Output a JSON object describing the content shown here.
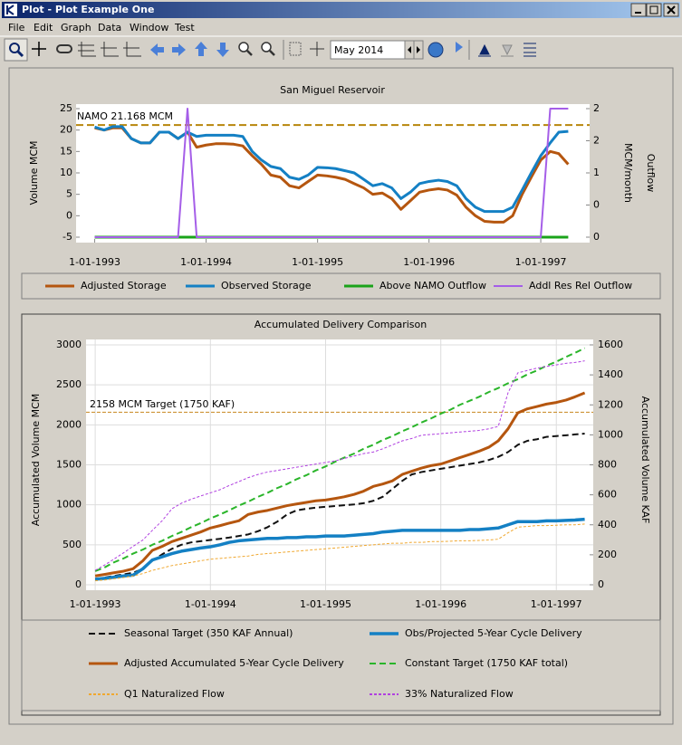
{
  "window": {
    "title": "Plot - Plot Example One",
    "menu": [
      "File",
      "Edit",
      "Graph",
      "Data",
      "Window",
      "Test"
    ],
    "toolbar_date": "May 2014"
  },
  "chart_data": [
    {
      "type": "line",
      "title": "San Miguel Reservoir",
      "ylabel": "Volume MCM",
      "y2label": [
        "Outflow",
        "MCM/month"
      ],
      "x": [
        "1993-01-01",
        "1993-02-01",
        "1993-03-01",
        "1993-04-01",
        "1993-05-01",
        "1993-06-01",
        "1993-07-01",
        "1993-08-01",
        "1993-09-01",
        "1993-10-01",
        "1993-11-01",
        "1993-12-01",
        "1994-01-01",
        "1994-02-01",
        "1994-03-01",
        "1994-04-01",
        "1994-05-01",
        "1994-06-01",
        "1994-07-01",
        "1994-08-01",
        "1994-09-01",
        "1994-10-01",
        "1994-11-01",
        "1994-12-01",
        "1995-01-01",
        "1995-02-01",
        "1995-03-01",
        "1995-04-01",
        "1995-05-01",
        "1995-06-01",
        "1995-07-01",
        "1995-08-01",
        "1995-09-01",
        "1995-10-01",
        "1995-11-01",
        "1995-12-01",
        "1996-01-01",
        "1996-02-01",
        "1996-03-01",
        "1996-04-01",
        "1996-05-01",
        "1996-06-01",
        "1996-07-01",
        "1996-08-01",
        "1996-09-01",
        "1996-10-01",
        "1996-11-01",
        "1996-12-01",
        "1997-01-01",
        "1997-02-01",
        "1997-03-01",
        "1997-04-01"
      ],
      "xlim": [
        "1992-11-01",
        "1997-06-10"
      ],
      "xticks": [
        {
          "value": "1993-01-01",
          "label": "1-01-1993"
        },
        {
          "value": "1994-01-01",
          "label": "1-01-1994"
        },
        {
          "value": "1995-01-01",
          "label": "1-01-1995"
        },
        {
          "value": "1996-01-01",
          "label": "1-01-1996"
        },
        {
          "value": "1997-01-01",
          "label": "1-01-1997"
        }
      ],
      "ylim": [
        -5,
        25
      ],
      "yticks": [
        -5,
        0,
        5,
        10,
        15,
        20,
        25
      ],
      "y2lim": [
        0,
        2
      ],
      "y2ticks": [
        0,
        {
          "value": 0.5,
          "label": "0"
        },
        1,
        {
          "value": 1.5,
          "label": "2"
        },
        2
      ],
      "grid": false,
      "legend": "bottom",
      "reference_lines": [
        {
          "value": 21.168,
          "label": "NAMO 21.168 MCM",
          "color": "#b8860b",
          "width": 2
        }
      ],
      "series": [
        {
          "name": "Adjusted Storage",
          "color": "#b5560f",
          "width": 3,
          "style": "solid",
          "values": [
            20.5,
            20,
            20.5,
            20.5,
            18,
            17,
            17,
            19.5,
            19.5,
            18,
            19.5,
            16,
            16.5,
            16.8,
            16.8,
            16.7,
            16.3,
            14,
            12,
            9.5,
            9,
            7,
            6.5,
            8,
            9.5,
            9.3,
            9,
            8.5,
            7.5,
            6.5,
            5,
            5.3,
            4,
            1.5,
            3.5,
            5.5,
            6,
            6.3,
            6,
            4.8,
            2,
            0,
            -1.3,
            -1.5,
            -1.5,
            0,
            5,
            9,
            13,
            15,
            14.5,
            12
          ]
        },
        {
          "name": "Observed Storage",
          "color": "#1480c4",
          "width": 3,
          "style": "solid",
          "values": [
            20.7,
            20,
            20.8,
            20.8,
            18,
            17,
            17,
            19.5,
            19.5,
            18,
            19.5,
            18.5,
            18.8,
            18.8,
            18.8,
            18.8,
            18.5,
            15,
            13,
            11.5,
            11,
            9,
            8.5,
            9.5,
            11.3,
            11.2,
            11,
            10.5,
            10,
            8.5,
            7,
            7.5,
            6.5,
            4,
            5.5,
            7.5,
            8,
            8.3,
            8,
            7,
            4,
            2,
            1,
            1,
            1,
            2,
            6,
            10,
            14,
            17,
            19.5,
            19.7
          ]
        },
        {
          "name": "Above NAMO Outflow",
          "color": "#1aa31a",
          "width": 3,
          "style": "solid",
          "axis": "y2",
          "values": [
            0,
            0,
            0,
            0,
            0,
            0,
            0,
            0,
            0,
            0,
            0,
            0,
            0,
            0,
            0,
            0,
            0,
            0,
            0,
            0,
            0,
            0,
            0,
            0,
            0,
            0,
            0,
            0,
            0,
            0,
            0,
            0,
            0,
            0,
            0,
            0,
            0,
            0,
            0,
            0,
            0,
            0,
            0,
            0,
            0,
            0,
            0,
            0,
            0,
            0,
            0,
            0
          ]
        },
        {
          "name": "Addl Res Rel Outflow",
          "color": "#a55ee8",
          "width": 2,
          "style": "solid",
          "axis": "y2",
          "values": [
            0,
            0,
            0,
            0,
            0,
            0,
            0,
            0,
            0,
            0,
            2,
            0,
            0,
            0,
            0,
            0,
            0,
            0,
            0,
            0,
            0,
            0,
            0,
            0,
            0,
            0,
            0,
            0,
            0,
            0,
            0,
            0,
            0,
            0,
            0,
            0,
            0,
            0,
            0,
            0,
            0,
            0,
            0,
            0,
            0,
            0,
            0,
            0,
            0,
            2,
            2,
            2
          ]
        }
      ]
    },
    {
      "type": "line",
      "title": "Accumulated Delivery Comparison",
      "ylabel": "Accumulated Volume MCM",
      "y2label": [
        "Accumulated Volume KAF"
      ],
      "x": [
        "1993-01-01",
        "1993-02-01",
        "1993-03-01",
        "1993-04-01",
        "1993-05-01",
        "1993-06-01",
        "1993-07-01",
        "1993-08-01",
        "1993-09-01",
        "1993-10-01",
        "1993-11-01",
        "1993-12-01",
        "1994-01-01",
        "1994-02-01",
        "1994-03-01",
        "1994-04-01",
        "1994-05-01",
        "1994-06-01",
        "1994-07-01",
        "1994-08-01",
        "1994-09-01",
        "1994-10-01",
        "1994-11-01",
        "1994-12-01",
        "1995-01-01",
        "1995-02-01",
        "1995-03-01",
        "1995-04-01",
        "1995-05-01",
        "1995-06-01",
        "1995-07-01",
        "1995-08-01",
        "1995-09-01",
        "1995-10-01",
        "1995-11-01",
        "1995-12-01",
        "1996-01-01",
        "1996-02-01",
        "1996-03-01",
        "1996-04-01",
        "1996-05-01",
        "1996-06-01",
        "1996-07-01",
        "1996-08-01",
        "1996-09-01",
        "1996-10-01",
        "1996-11-01",
        "1996-12-01",
        "1997-01-01",
        "1997-02-01",
        "1997-03-01",
        "1997-04-01"
      ],
      "xlim": [
        "1992-12-03",
        "1997-04-28"
      ],
      "xticks": [
        {
          "value": "1993-01-01",
          "label": "1-01-1993"
        },
        {
          "value": "1994-01-01",
          "label": "1-01-1994"
        },
        {
          "value": "1995-01-01",
          "label": "1-01-1995"
        },
        {
          "value": "1996-01-01",
          "label": "1-01-1996"
        },
        {
          "value": "1997-01-01",
          "label": "1-01-1997"
        }
      ],
      "ylim": [
        0,
        3000
      ],
      "yticks": [
        0,
        500,
        1000,
        1500,
        2000,
        2500,
        3000
      ],
      "y2lim": [
        0,
        1600
      ],
      "y2ticks": [
        0,
        200,
        400,
        600,
        800,
        1000,
        1200,
        1400,
        1600
      ],
      "grid": true,
      "legend": "bottom",
      "reference_lines": [
        {
          "value": 2158,
          "label": "2158 MCM Target (1750 KAF)",
          "color": "#c8861e",
          "width": 1
        }
      ],
      "series": [
        {
          "name": "Seasonal Target (350 KAF Annual)",
          "color": "#111111",
          "width": 2,
          "style": "dashed",
          "values": [
            70,
            90,
            110,
            130,
            150,
            200,
            300,
            380,
            450,
            500,
            530,
            545,
            560,
            575,
            590,
            610,
            630,
            670,
            720,
            790,
            880,
            930,
            950,
            965,
            975,
            985,
            995,
            1005,
            1020,
            1050,
            1100,
            1200,
            1300,
            1380,
            1410,
            1430,
            1450,
            1470,
            1490,
            1510,
            1530,
            1560,
            1600,
            1660,
            1750,
            1800,
            1820,
            1850,
            1860,
            1870,
            1880,
            1890
          ]
        },
        {
          "name": "Obs/Projected 5-Year Cycle Delivery",
          "color": "#1480c4",
          "width": 3.5,
          "style": "solid",
          "values": [
            70,
            80,
            95,
            110,
            120,
            200,
            310,
            350,
            390,
            420,
            440,
            460,
            475,
            500,
            530,
            550,
            560,
            570,
            580,
            580,
            590,
            590,
            600,
            600,
            610,
            610,
            610,
            620,
            630,
            640,
            660,
            670,
            680,
            680,
            680,
            680,
            680,
            680,
            680,
            690,
            690,
            700,
            710,
            750,
            790,
            790,
            790,
            800,
            800,
            805,
            810,
            820
          ]
        },
        {
          "name": "Adjusted Accumulated 5-Year Cycle Delivery",
          "color": "#b5560f",
          "width": 3,
          "style": "solid",
          "values": [
            110,
            130,
            150,
            170,
            200,
            300,
            430,
            480,
            540,
            580,
            620,
            660,
            710,
            740,
            770,
            800,
            880,
            910,
            930,
            960,
            990,
            1010,
            1030,
            1050,
            1060,
            1080,
            1100,
            1130,
            1170,
            1230,
            1260,
            1300,
            1380,
            1420,
            1460,
            1490,
            1510,
            1550,
            1590,
            1630,
            1670,
            1720,
            1800,
            1950,
            2150,
            2200,
            2230,
            2260,
            2280,
            2310,
            2350,
            2400
          ]
        },
        {
          "name": "Constant Target (1750 KAF total)",
          "color": "#2ab52a",
          "width": 2,
          "style": "dashed",
          "values": [
            170,
            220,
            280,
            330,
            390,
            440,
            500,
            550,
            610,
            660,
            720,
            770,
            830,
            880,
            930,
            990,
            1040,
            1100,
            1150,
            1210,
            1260,
            1320,
            1370,
            1430,
            1480,
            1540,
            1590,
            1640,
            1700,
            1750,
            1810,
            1860,
            1920,
            1970,
            2030,
            2080,
            2140,
            2190,
            2250,
            2300,
            2350,
            2410,
            2460,
            2520,
            2570,
            2630,
            2680,
            2740,
            2790,
            2850,
            2900,
            2960
          ]
        },
        {
          "name": "Q1 Naturalized Flow",
          "color": "#f0a830",
          "width": 1,
          "style": "dashed",
          "values": [
            50,
            60,
            75,
            90,
            110,
            140,
            180,
            210,
            240,
            260,
            280,
            300,
            320,
            330,
            340,
            350,
            360,
            380,
            390,
            400,
            410,
            420,
            430,
            440,
            450,
            460,
            470,
            480,
            490,
            500,
            510,
            520,
            520,
            530,
            530,
            540,
            540,
            545,
            550,
            550,
            555,
            560,
            570,
            650,
            720,
            730,
            740,
            740,
            745,
            750,
            750,
            760
          ]
        },
        {
          "name": "33% Naturalized Flow",
          "color": "#b040e0",
          "width": 1,
          "style": "dashed",
          "values": [
            180,
            250,
            320,
            400,
            480,
            560,
            680,
            800,
            950,
            1020,
            1070,
            1110,
            1150,
            1190,
            1240,
            1290,
            1340,
            1380,
            1410,
            1430,
            1450,
            1470,
            1490,
            1510,
            1530,
            1550,
            1580,
            1610,
            1640,
            1660,
            1700,
            1750,
            1800,
            1830,
            1870,
            1880,
            1890,
            1900,
            1910,
            1920,
            1930,
            1950,
            1980,
            2400,
            2650,
            2680,
            2710,
            2730,
            2750,
            2770,
            2780,
            2800
          ]
        }
      ]
    }
  ]
}
